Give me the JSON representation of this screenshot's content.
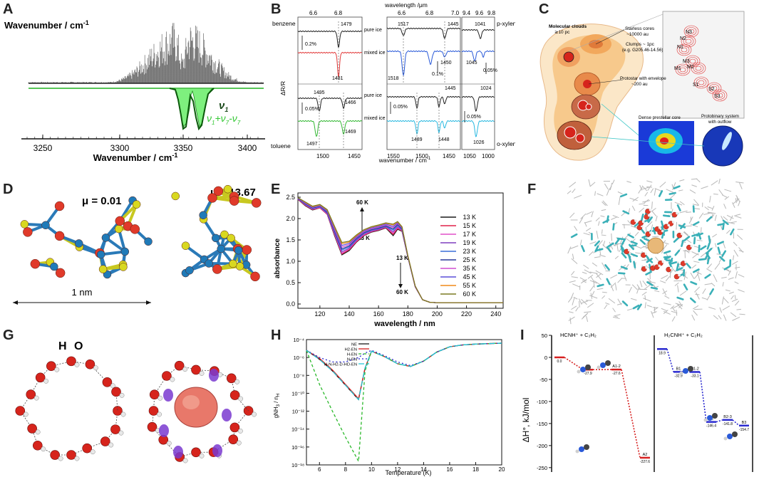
{
  "panels": {
    "A": {
      "label": "A",
      "top_axis_title": "Wavenumber / cm",
      "top_axis_sup": "-1",
      "bottom_axis_title": "Wavenumber / cm",
      "bottom_axis_sup": "-1",
      "ticks": [
        "3250",
        "3300",
        "3350",
        "3400"
      ],
      "legend_line1": "ν",
      "legend_line1_sub": "1",
      "legend_line2": "ν",
      "legend_line2_sub1": "1",
      "legend_line2_mid": "+ν",
      "legend_line2_sub2": "7",
      "legend_line2_end": "-ν",
      "legend_line2_sub3": "7"
    },
    "B": {
      "label": "B",
      "top_title": "wavelength /μm",
      "top_ticks_1": [
        "6.6",
        "6.8"
      ],
      "top_ticks_2": [
        "6.6",
        "6.8",
        "7.0"
      ],
      "top_ticks_3": [
        "9.4",
        "9.6",
        "9.8"
      ],
      "bottom_title": "wavenumber / cm",
      "bottom_sup": "-1",
      "bottom_ticks_1": [
        "1500",
        "1450"
      ],
      "bottom_ticks_2": [
        "1550",
        "1500",
        "1450"
      ],
      "bottom_ticks_3": [
        "1050",
        "1000"
      ],
      "y_title": "ΔR/R",
      "names": [
        "benzene",
        "toluene",
        "p-xylene",
        "o-xylene"
      ],
      "conds": [
        "pure ice",
        "mixed ice",
        "pure ice",
        "mixed ice"
      ],
      "scales": [
        "0.2%",
        "0.05%",
        "0.1%",
        "0.05%",
        "0.05%",
        "0.05%"
      ],
      "peaks": [
        "1479",
        "1481",
        "1495",
        "1466",
        "1469",
        "1497",
        "1517",
        "1445",
        "1450",
        "1518",
        "1445",
        "1489",
        "1448",
        "1041",
        "1045",
        "1024",
        "1026"
      ]
    },
    "C": {
      "label": "C",
      "t_clouds": "Molecular clouds",
      "t_clouds2": "≳10 pc",
      "t_starless": "Starless cores",
      "t_starless2": "~10000 au",
      "t_clumps": "Clumps ~ 1pc",
      "t_clumps2": "(e.g. G205.46-14.56)",
      "t_protostar": "Protostar with envelope",
      "t_protostar2": "~200 au",
      "t_dense": "Dense prestellar core",
      "t_binary": "Protobinary system",
      "t_binary2": "with outflow",
      "sources": [
        "N3",
        "N2",
        "N1",
        "M3",
        "M2",
        "M1",
        "S1",
        "S2",
        "S3"
      ]
    },
    "D": {
      "label": "D",
      "mu1": "μ = 0.01",
      "mu2": "μ = 13.67",
      "scale": "1 nm"
    },
    "E": {
      "label": "E",
      "ylabel": "absorbance",
      "xlabel": "wavelength / nm",
      "ann_60_top": "60 K",
      "ann_13_top": "13 K",
      "ann_13_bot": "13 K",
      "ann_60_bot": "60 K"
    },
    "F": {
      "label": "F"
    },
    "G": {
      "label": "G",
      "h_label": "H",
      "o_label": "O"
    },
    "H": {
      "label": "H",
      "xlabel": "Temperature (K)",
      "ylabel_main": "gNH",
      "ylabel_sub": "3",
      "ylabel_rest": " / n",
      "ylabel_sub2": "H"
    },
    "I": {
      "label": "I",
      "title_left": "HCNH⁺ + C₂H₂",
      "title_right": "H₂CNH⁺ + C₂H₂",
      "ylabel": "ΔH°, kJ/mol",
      "left_levels": [
        {
          "name": "",
          "value": "0.0"
        },
        {
          "name": "A1",
          "value": "-27.9"
        },
        {
          "name": "A1-2",
          "value": "-27.6"
        },
        {
          "name": "A2",
          "value": "-227.6"
        }
      ],
      "right_levels": [
        {
          "name": "",
          "value": "18.9"
        },
        {
          "name": "B1",
          "value": "-32.9"
        },
        {
          "name": "B1-2",
          "value": "-33.1"
        },
        {
          "name": "B2",
          "value": "-146.4"
        },
        {
          "name": "B2-3",
          "value": "-141.8"
        },
        {
          "name": "B3",
          "value": "-154.7"
        }
      ]
    }
  },
  "chart_data": [
    {
      "type": "line",
      "panel": "E",
      "title": "",
      "xlabel": "wavelength / nm",
      "ylabel": "absorbance",
      "xlim": [
        105,
        245
      ],
      "ylim": [
        -0.1,
        2.6
      ],
      "xticks": [
        120,
        140,
        160,
        180,
        200,
        220,
        240
      ],
      "yticks": [
        0.0,
        0.5,
        1.0,
        1.5,
        2.0,
        2.5
      ],
      "x": [
        105,
        110,
        115,
        120,
        125,
        130,
        135,
        140,
        145,
        150,
        155,
        160,
        165,
        170,
        173,
        176,
        180,
        185,
        190,
        195,
        200,
        210,
        220,
        230,
        240,
        245
      ],
      "series": [
        {
          "name": "13 K",
          "color": "#1a1a1a",
          "values": [
            2.45,
            2.3,
            2.2,
            2.25,
            2.1,
            1.6,
            1.15,
            1.25,
            1.45,
            1.6,
            1.68,
            1.72,
            1.78,
            1.6,
            1.75,
            1.7,
            1.1,
            0.4,
            0.1,
            0.04,
            0.03,
            0.03,
            0.03,
            0.03,
            0.03,
            0.03
          ]
        },
        {
          "name": "15 K",
          "color": "#e0204a",
          "values": [
            2.45,
            2.31,
            2.21,
            2.25,
            2.1,
            1.62,
            1.17,
            1.27,
            1.46,
            1.61,
            1.69,
            1.73,
            1.79,
            1.63,
            1.77,
            1.71,
            1.1,
            0.4,
            0.1,
            0.04,
            0.03,
            0.03,
            0.03,
            0.03,
            0.03,
            0.03
          ]
        },
        {
          "name": "17 K",
          "color": "#e050c8",
          "values": [
            2.46,
            2.32,
            2.22,
            2.26,
            2.11,
            1.64,
            1.19,
            1.29,
            1.48,
            1.62,
            1.7,
            1.74,
            1.8,
            1.66,
            1.79,
            1.72,
            1.1,
            0.4,
            0.1,
            0.04,
            0.03,
            0.03,
            0.03,
            0.03,
            0.03,
            0.03
          ]
        },
        {
          "name": "19 K",
          "color": "#7f3fbf",
          "values": [
            2.46,
            2.33,
            2.23,
            2.27,
            2.12,
            1.66,
            1.22,
            1.31,
            1.5,
            1.64,
            1.71,
            1.75,
            1.81,
            1.69,
            1.81,
            1.73,
            1.1,
            0.41,
            0.1,
            0.04,
            0.03,
            0.03,
            0.03,
            0.03,
            0.03,
            0.03
          ]
        },
        {
          "name": "23 K",
          "color": "#3a6fd8",
          "values": [
            2.47,
            2.34,
            2.24,
            2.28,
            2.14,
            1.69,
            1.26,
            1.34,
            1.52,
            1.66,
            1.73,
            1.77,
            1.82,
            1.73,
            1.84,
            1.75,
            1.11,
            0.41,
            0.1,
            0.04,
            0.03,
            0.03,
            0.03,
            0.03,
            0.03,
            0.03
          ]
        },
        {
          "name": "25 K",
          "color": "#2a3a9a",
          "values": [
            2.47,
            2.35,
            2.25,
            2.29,
            2.15,
            1.71,
            1.29,
            1.36,
            1.54,
            1.67,
            1.74,
            1.78,
            1.83,
            1.76,
            1.86,
            1.76,
            1.11,
            0.41,
            0.1,
            0.04,
            0.03,
            0.03,
            0.03,
            0.03,
            0.03,
            0.03
          ]
        },
        {
          "name": "35 K",
          "color": "#d04fd0",
          "values": [
            2.48,
            2.36,
            2.26,
            2.3,
            2.17,
            1.74,
            1.33,
            1.39,
            1.56,
            1.69,
            1.76,
            1.8,
            1.85,
            1.79,
            1.88,
            1.78,
            1.12,
            0.42,
            0.1,
            0.04,
            0.03,
            0.03,
            0.03,
            0.03,
            0.03,
            0.03
          ]
        },
        {
          "name": "45 K",
          "color": "#5a4fd8",
          "values": [
            2.48,
            2.37,
            2.27,
            2.31,
            2.18,
            1.77,
            1.37,
            1.42,
            1.58,
            1.71,
            1.78,
            1.82,
            1.87,
            1.82,
            1.9,
            1.79,
            1.12,
            0.42,
            0.1,
            0.04,
            0.03,
            0.03,
            0.03,
            0.03,
            0.03,
            0.03
          ]
        },
        {
          "name": "55 K",
          "color": "#f08a1a",
          "values": [
            2.49,
            2.38,
            2.28,
            2.32,
            2.2,
            1.8,
            1.41,
            1.45,
            1.6,
            1.73,
            1.8,
            1.84,
            1.89,
            1.85,
            1.92,
            1.8,
            1.13,
            0.42,
            0.1,
            0.04,
            0.03,
            0.03,
            0.03,
            0.03,
            0.03,
            0.03
          ]
        },
        {
          "name": "60 K",
          "color": "#7a7a20",
          "values": [
            2.49,
            2.39,
            2.29,
            2.33,
            2.21,
            1.82,
            1.44,
            1.47,
            1.62,
            1.74,
            1.81,
            1.85,
            1.9,
            1.87,
            1.93,
            1.81,
            1.13,
            0.42,
            0.1,
            0.04,
            0.03,
            0.03,
            0.03,
            0.03,
            0.03,
            0.03
          ]
        }
      ]
    },
    {
      "type": "line",
      "panel": "H",
      "xlabel": "Temperature (K)",
      "ylabel": "gNH3 / nH",
      "yscale": "log",
      "xlim": [
        5,
        20
      ],
      "ylim": [
        -18,
        -4
      ],
      "xticks": [
        6,
        8,
        10,
        12,
        14,
        16,
        18,
        20
      ],
      "yticks": [
        -4,
        -6,
        -8,
        -10,
        -12,
        -14,
        -16,
        -18
      ],
      "ytick_labels": [
        "10⁻⁴",
        "10⁻⁶",
        "10⁻⁸",
        "10⁻¹⁰",
        "10⁻¹²",
        "10⁻¹⁴",
        "10⁻¹⁶",
        "10⁻¹⁸"
      ],
      "series": [
        {
          "name": "NE",
          "color": "#1a1a1a",
          "dash": "",
          "x": [
            5,
            6,
            7,
            8,
            9,
            9.5,
            10,
            11,
            12,
            13,
            14,
            15,
            16,
            17,
            18,
            20
          ],
          "log10y": [
            -5.2,
            -6.2,
            -7.5,
            -9.1,
            -10.7,
            -7.2,
            -5.3,
            -5.9,
            -6.7,
            -7.0,
            -6.4,
            -5.4,
            -4.8,
            -4.6,
            -4.5,
            -4.4
          ]
        },
        {
          "name": "H2-EN",
          "color": "#d62020",
          "dash": "",
          "x": [
            5,
            6,
            7,
            8,
            9,
            9.5,
            10,
            11,
            12,
            13,
            14,
            15,
            16,
            17,
            18,
            20
          ],
          "log10y": [
            -5.2,
            -6.1,
            -7.4,
            -9.0,
            -10.6,
            -7.2,
            -5.3,
            -5.9,
            -6.7,
            -7.0,
            -6.4,
            -5.4,
            -4.8,
            -4.6,
            -4.5,
            -4.4
          ]
        },
        {
          "name": "H-EN",
          "color": "#2ab82a",
          "dash": "4,3",
          "x": [
            5,
            6,
            7,
            8,
            9,
            9.5,
            10,
            11,
            12,
            13,
            14,
            15,
            16,
            17,
            18,
            20
          ],
          "log10y": [
            -5.2,
            -9.0,
            -12.0,
            -14.9,
            -17.6,
            -7.5,
            -5.3,
            -5.9,
            -6.7,
            -7.0,
            -6.4,
            -5.4,
            -4.8,
            -4.6,
            -4.5,
            -4.4
          ]
        },
        {
          "name": "N-EN",
          "color": "#2a2ad0",
          "dash": "2,3",
          "x": [
            5,
            6,
            7,
            8,
            9,
            9.5,
            10,
            11,
            12,
            13,
            14,
            15,
            16,
            17,
            18,
            20
          ],
          "log10y": [
            -5.2,
            -6.0,
            -6.5,
            -6.5,
            -6.0,
            -5.5,
            -5.2,
            -5.8,
            -6.5,
            -6.9,
            -6.4,
            -5.4,
            -4.8,
            -4.6,
            -4.5,
            -4.4
          ]
        },
        {
          "name": "H-N-H2-D-HD-EN",
          "color": "#20c8d8",
          "dash": "8,4",
          "x": [
            5,
            6,
            7,
            8,
            9,
            9.5,
            10,
            11,
            12,
            13,
            14,
            15,
            16,
            17,
            18,
            20
          ],
          "log10y": [
            -5.2,
            -6.2,
            -7.5,
            -9.1,
            -10.7,
            -7.2,
            -5.3,
            -5.9,
            -6.7,
            -7.0,
            -6.4,
            -5.4,
            -4.8,
            -4.6,
            -4.5,
            -4.4
          ]
        }
      ]
    },
    {
      "type": "line",
      "panel": "I",
      "ylabel": "ΔH°, kJ/mol",
      "ylim": [
        -260,
        50
      ],
      "yticks": [
        50,
        0,
        -50,
        -100,
        -150,
        -200,
        -250
      ],
      "series": [
        {
          "name": "HCNH⁺ + C₂H₂",
          "color": "#d62020",
          "levels": [
            0.0,
            -27.9,
            -27.6,
            -227.6
          ]
        },
        {
          "name": "H₂CNH⁺ + C₂H₂",
          "color": "#2a2ad0",
          "levels": [
            18.9,
            -32.9,
            -33.1,
            -146.4,
            -141.8,
            -154.7
          ]
        }
      ]
    }
  ]
}
